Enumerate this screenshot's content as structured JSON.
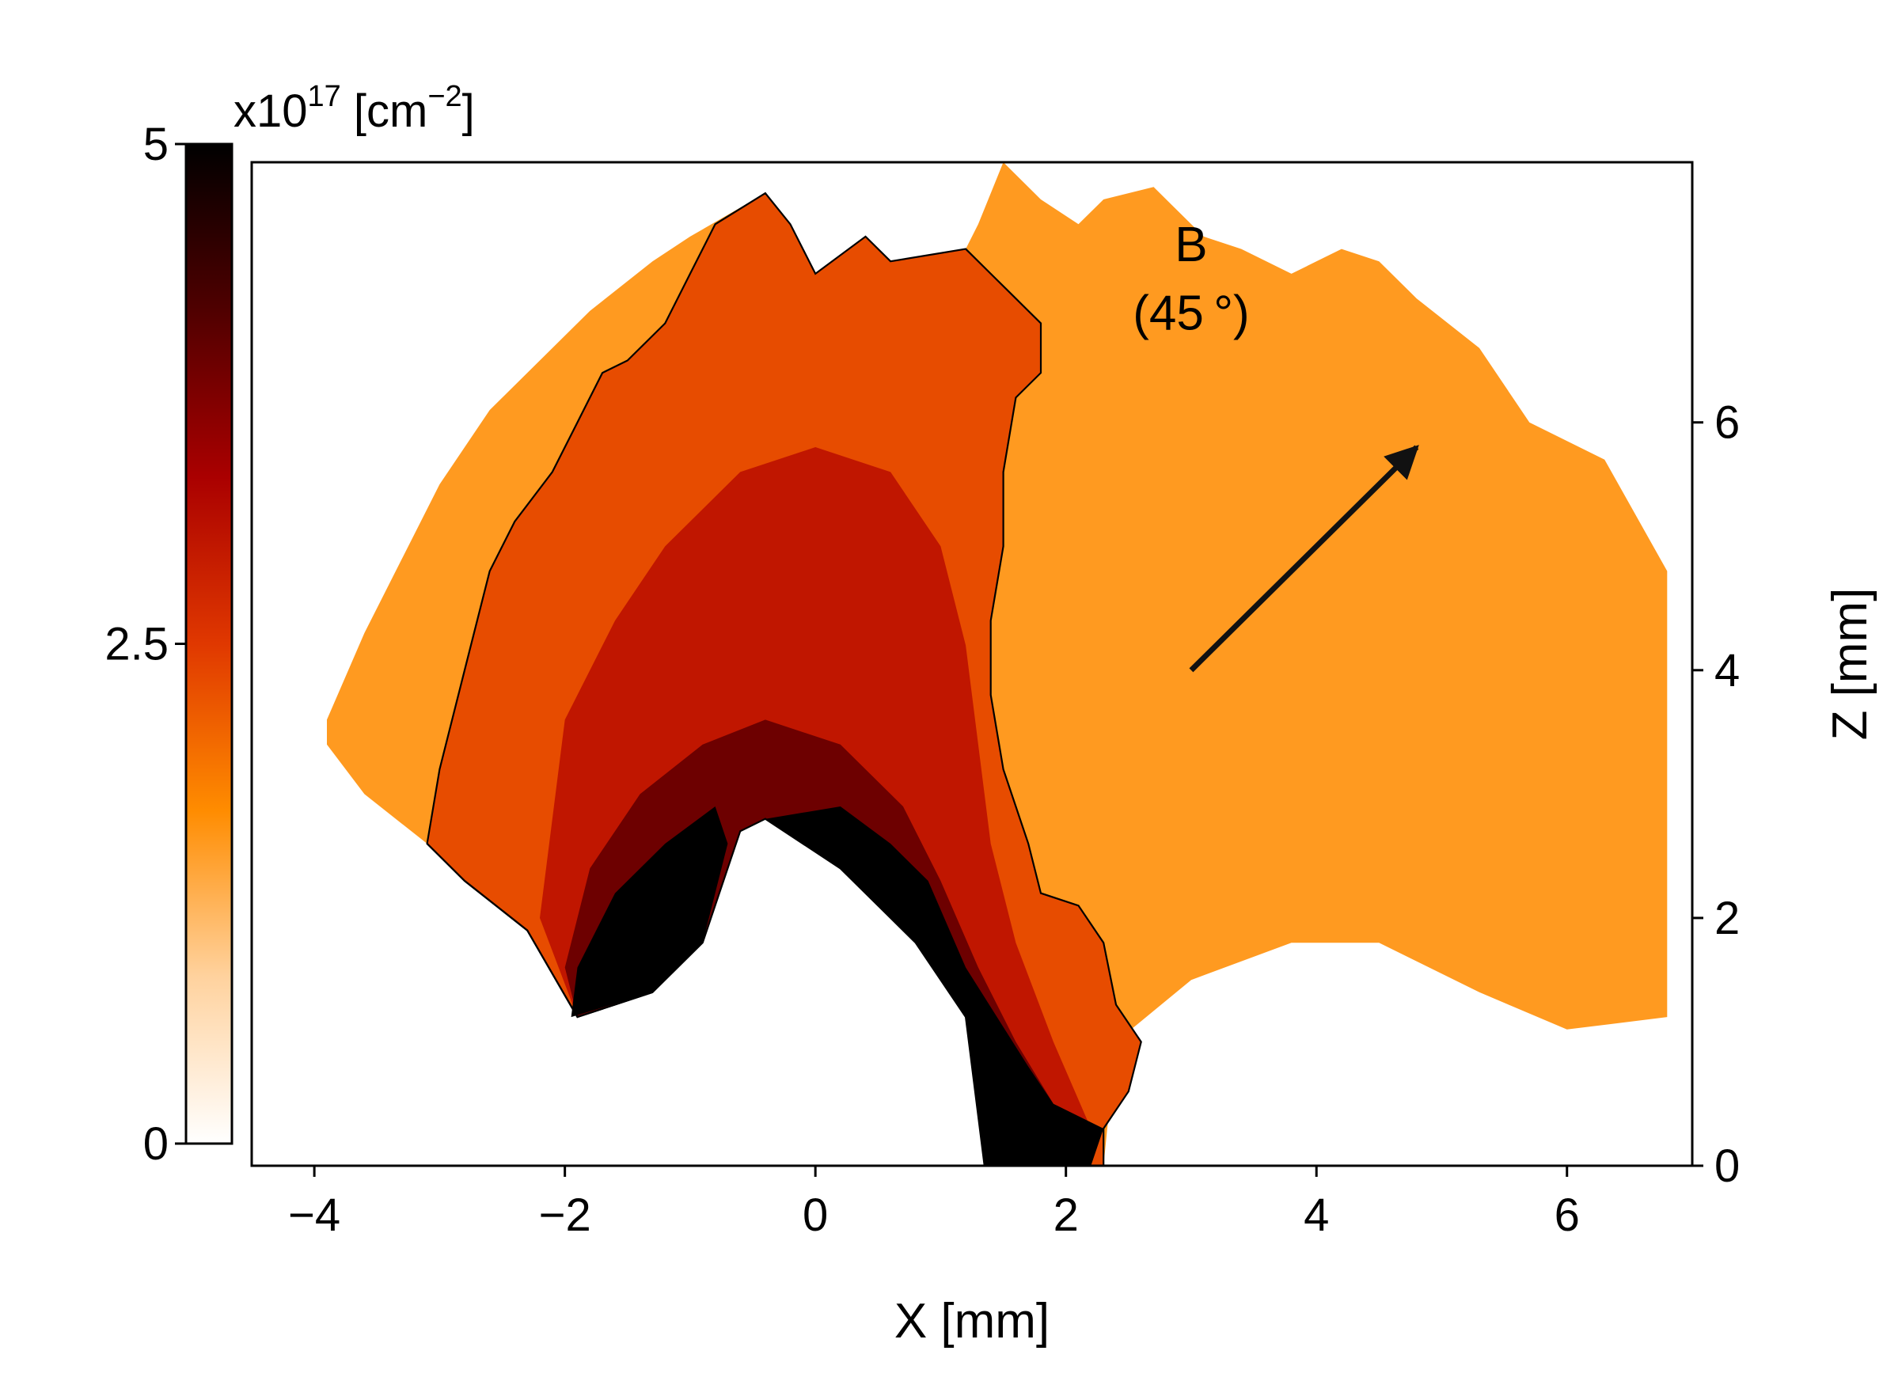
{
  "chart_data": {
    "type": "heatmap",
    "title": "",
    "xlabel": "X [mm]",
    "ylabel": "Z [mm]",
    "xlim": [
      -4.5,
      7.0
    ],
    "ylim": [
      0,
      8.1
    ],
    "xticks": [
      -4,
      -2,
      0,
      2,
      4,
      6
    ],
    "xtick_labels": [
      "−4",
      "−2",
      "0",
      "2",
      "4",
      "6"
    ],
    "yticks": [
      0,
      2,
      4,
      6
    ],
    "ytick_labels": [
      "0",
      "2",
      "4",
      "6"
    ],
    "y_axis_side": "right",
    "grid": false,
    "colorbar": {
      "label_base": "x10",
      "label_exp": "17",
      "label_unit_open": " [cm",
      "label_unit_exp": "−2",
      "label_unit_close": "]",
      "range": [
        0,
        5
      ],
      "ticks": [
        0,
        2.5,
        5
      ],
      "tick_labels": [
        "0",
        "2.5",
        "5"
      ],
      "colormap": [
        "#ffffff",
        "#ffd29e",
        "#ff8c00",
        "#e03800",
        "#aa0000",
        "#500000",
        "#000000"
      ],
      "placement": "left"
    },
    "annotation": {
      "line1": "B",
      "line2": "(45 °)",
      "arrow_from": [
        3.0,
        4.0
      ],
      "arrow_to": [
        4.8,
        5.8
      ]
    },
    "regions": [
      {
        "level": 1.5,
        "polygon": [
          [
            -3.9,
            3.4
          ],
          [
            -3.6,
            3.0
          ],
          [
            -3.1,
            2.6
          ],
          [
            -2.8,
            2.3
          ],
          [
            -2.3,
            1.9
          ],
          [
            -1.9,
            1.2
          ],
          [
            -1.3,
            1.4
          ],
          [
            -0.9,
            1.8
          ],
          [
            -0.6,
            2.7
          ],
          [
            -0.4,
            2.8
          ],
          [
            0.2,
            2.4
          ],
          [
            0.8,
            1.8
          ],
          [
            1.2,
            1.2
          ],
          [
            1.3,
            0.4
          ],
          [
            1.35,
            0.0
          ],
          [
            2.3,
            0.0
          ],
          [
            2.4,
            1.0
          ],
          [
            3.0,
            1.5
          ],
          [
            3.8,
            1.8
          ],
          [
            4.5,
            1.8
          ],
          [
            5.3,
            1.4
          ],
          [
            6.0,
            1.1
          ],
          [
            6.8,
            1.2
          ],
          [
            6.8,
            4.8
          ],
          [
            6.3,
            5.7
          ],
          [
            5.7,
            6.0
          ],
          [
            5.3,
            6.6
          ],
          [
            4.8,
            7.0
          ],
          [
            4.5,
            7.3
          ],
          [
            4.2,
            7.4
          ],
          [
            3.8,
            7.2
          ],
          [
            3.4,
            7.4
          ],
          [
            3.1,
            7.5
          ],
          [
            2.7,
            7.9
          ],
          [
            2.3,
            7.8
          ],
          [
            2.1,
            7.6
          ],
          [
            1.8,
            7.8
          ],
          [
            1.5,
            8.1
          ],
          [
            1.3,
            7.6
          ],
          [
            1.2,
            7.4
          ],
          [
            0.6,
            7.3
          ],
          [
            0.4,
            7.5
          ],
          [
            0.0,
            7.2
          ],
          [
            -0.2,
            7.6
          ],
          [
            -0.4,
            7.85
          ],
          [
            -1.0,
            7.5
          ],
          [
            -1.3,
            7.3
          ],
          [
            -1.8,
            6.9
          ],
          [
            -2.2,
            6.5
          ],
          [
            -2.6,
            6.1
          ],
          [
            -3.0,
            5.5
          ],
          [
            -3.3,
            4.9
          ],
          [
            -3.6,
            4.3
          ],
          [
            -3.9,
            3.6
          ]
        ]
      },
      {
        "level": 2.3,
        "polygon": [
          [
            -3.1,
            2.6
          ],
          [
            -3.0,
            3.2
          ],
          [
            -2.8,
            4.0
          ],
          [
            -2.6,
            4.8
          ],
          [
            -2.4,
            5.2
          ],
          [
            -2.1,
            5.6
          ],
          [
            -1.9,
            6.0
          ],
          [
            -1.7,
            6.4
          ],
          [
            -1.5,
            6.5
          ],
          [
            -1.2,
            6.8
          ],
          [
            -1.0,
            7.2
          ],
          [
            -0.8,
            7.6
          ],
          [
            -0.4,
            7.85
          ],
          [
            -0.2,
            7.6
          ],
          [
            0.0,
            7.2
          ],
          [
            0.4,
            7.5
          ],
          [
            0.6,
            7.3
          ],
          [
            1.2,
            7.4
          ],
          [
            1.4,
            7.2
          ],
          [
            1.6,
            7.0
          ],
          [
            1.8,
            6.8
          ],
          [
            1.8,
            6.4
          ],
          [
            1.6,
            6.2
          ],
          [
            1.5,
            5.6
          ],
          [
            1.5,
            5.0
          ],
          [
            1.4,
            4.4
          ],
          [
            1.4,
            3.8
          ],
          [
            1.5,
            3.2
          ],
          [
            1.7,
            2.6
          ],
          [
            1.8,
            2.2
          ],
          [
            2.1,
            2.1
          ],
          [
            2.3,
            1.8
          ],
          [
            2.4,
            1.3
          ],
          [
            2.6,
            1.0
          ],
          [
            2.5,
            0.6
          ],
          [
            2.3,
            0.3
          ],
          [
            2.3,
            0.0
          ],
          [
            1.35,
            0.0
          ],
          [
            1.3,
            0.4
          ],
          [
            1.2,
            1.2
          ],
          [
            0.8,
            1.8
          ],
          [
            0.2,
            2.4
          ],
          [
            -0.4,
            2.8
          ],
          [
            -0.6,
            2.7
          ],
          [
            -0.9,
            1.8
          ],
          [
            -1.3,
            1.4
          ],
          [
            -1.9,
            1.2
          ],
          [
            -2.3,
            1.9
          ],
          [
            -2.8,
            2.3
          ]
        ]
      },
      {
        "level": 3.0,
        "polygon": [
          [
            -2.0,
            3.6
          ],
          [
            -1.6,
            4.4
          ],
          [
            -1.2,
            5.0
          ],
          [
            -0.6,
            5.6
          ],
          [
            0.0,
            5.8
          ],
          [
            0.6,
            5.6
          ],
          [
            1.0,
            5.0
          ],
          [
            1.2,
            4.2
          ],
          [
            1.3,
            3.4
          ],
          [
            1.4,
            2.6
          ],
          [
            1.6,
            1.8
          ],
          [
            1.9,
            1.0
          ],
          [
            2.2,
            0.3
          ],
          [
            2.1,
            0.0
          ],
          [
            1.35,
            0.0
          ],
          [
            1.3,
            0.4
          ],
          [
            1.2,
            1.2
          ],
          [
            0.8,
            1.8
          ],
          [
            0.2,
            2.4
          ],
          [
            -0.4,
            2.8
          ],
          [
            -0.6,
            2.7
          ],
          [
            -0.9,
            1.8
          ],
          [
            -1.3,
            1.4
          ],
          [
            -1.9,
            1.2
          ],
          [
            -2.2,
            2.0
          ]
        ]
      },
      {
        "level": 3.9,
        "polygon": [
          [
            -1.8,
            2.4
          ],
          [
            -1.4,
            3.0
          ],
          [
            -0.9,
            3.4
          ],
          [
            -0.4,
            3.6
          ],
          [
            0.2,
            3.4
          ],
          [
            0.7,
            2.9
          ],
          [
            1.0,
            2.3
          ],
          [
            1.3,
            1.6
          ],
          [
            1.6,
            1.0
          ],
          [
            1.9,
            0.5
          ],
          [
            2.0,
            0.0
          ],
          [
            1.35,
            0.0
          ],
          [
            1.3,
            0.4
          ],
          [
            1.2,
            1.2
          ],
          [
            0.8,
            1.8
          ],
          [
            0.2,
            2.4
          ],
          [
            -0.4,
            2.8
          ],
          [
            -0.6,
            2.7
          ],
          [
            -0.9,
            1.8
          ],
          [
            -1.3,
            1.4
          ],
          [
            -1.9,
            1.2
          ],
          [
            -2.0,
            1.6
          ]
        ]
      },
      {
        "level": 5.0,
        "polygon": [
          [
            -1.95,
            1.2
          ],
          [
            -1.3,
            1.4
          ],
          [
            -0.9,
            1.8
          ],
          [
            -0.7,
            2.6
          ],
          [
            -0.8,
            2.9
          ],
          [
            -1.2,
            2.6
          ],
          [
            -1.6,
            2.2
          ],
          [
            -1.9,
            1.6
          ]
        ]
      },
      {
        "level": 5.0,
        "polygon": [
          [
            -0.4,
            2.8
          ],
          [
            0.2,
            2.4
          ],
          [
            0.8,
            1.8
          ],
          [
            1.2,
            1.2
          ],
          [
            1.3,
            0.4
          ],
          [
            1.35,
            0.0
          ],
          [
            2.2,
            0.0
          ],
          [
            2.3,
            0.3
          ],
          [
            1.9,
            0.5
          ],
          [
            1.7,
            0.8
          ],
          [
            1.2,
            1.6
          ],
          [
            0.9,
            2.3
          ],
          [
            0.6,
            2.6
          ],
          [
            0.2,
            2.9
          ]
        ]
      }
    ],
    "contour": {
      "level": 2.3,
      "outer_boundary": [
        [
          -3.1,
          2.6
        ],
        [
          -2.8,
          2.3
        ],
        [
          -2.3,
          1.9
        ],
        [
          -1.9,
          1.2
        ],
        [
          -1.3,
          1.4
        ]
      ]
    }
  }
}
